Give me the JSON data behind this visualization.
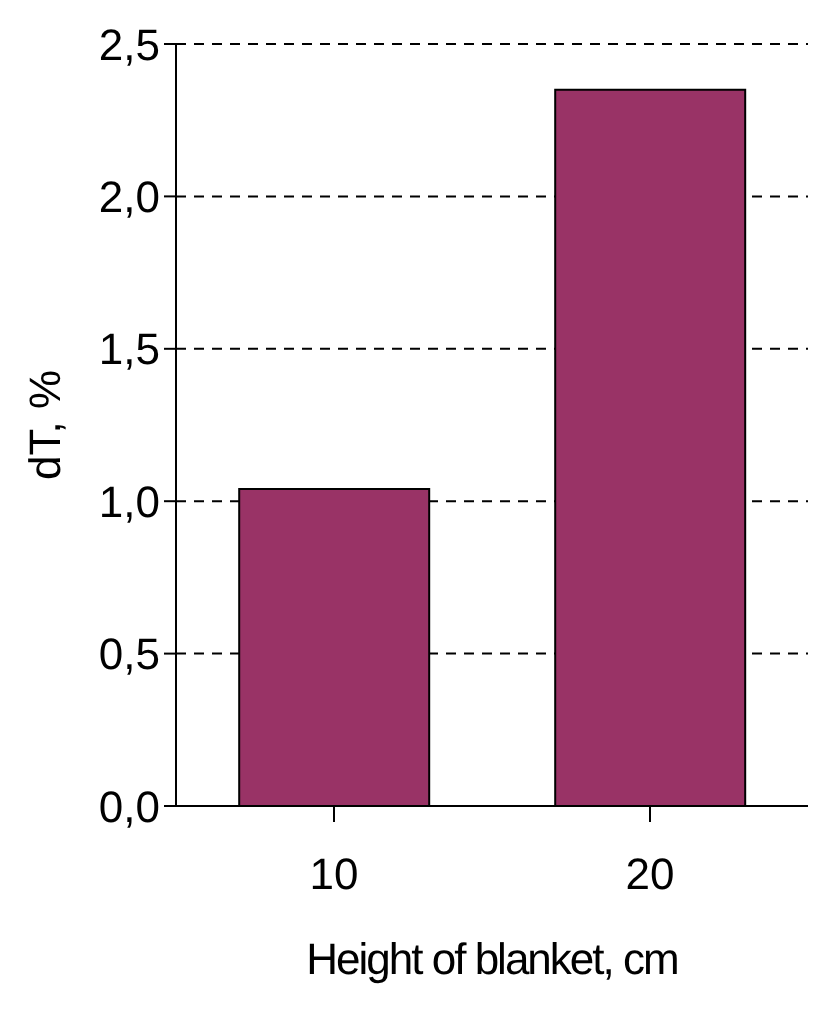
{
  "chart_data": {
    "type": "bar",
    "xlabel": "Height of blanket, cm",
    "ylabel": "dT, %",
    "categories": [
      "10",
      "20"
    ],
    "values": [
      1.04,
      2.35
    ],
    "color": "#993366",
    "ylim": [
      0,
      2.5
    ],
    "yticks": [
      {
        "value": 0,
        "label": "0,0"
      },
      {
        "value": 0.5,
        "label": "0,5"
      },
      {
        "value": 1,
        "label": "1,0"
      },
      {
        "value": 1.5,
        "label": "1,5"
      },
      {
        "value": 2,
        "label": "2,0"
      },
      {
        "value": 2.5,
        "label": "2,5"
      }
    ],
    "grid": "y",
    "legend": false
  }
}
